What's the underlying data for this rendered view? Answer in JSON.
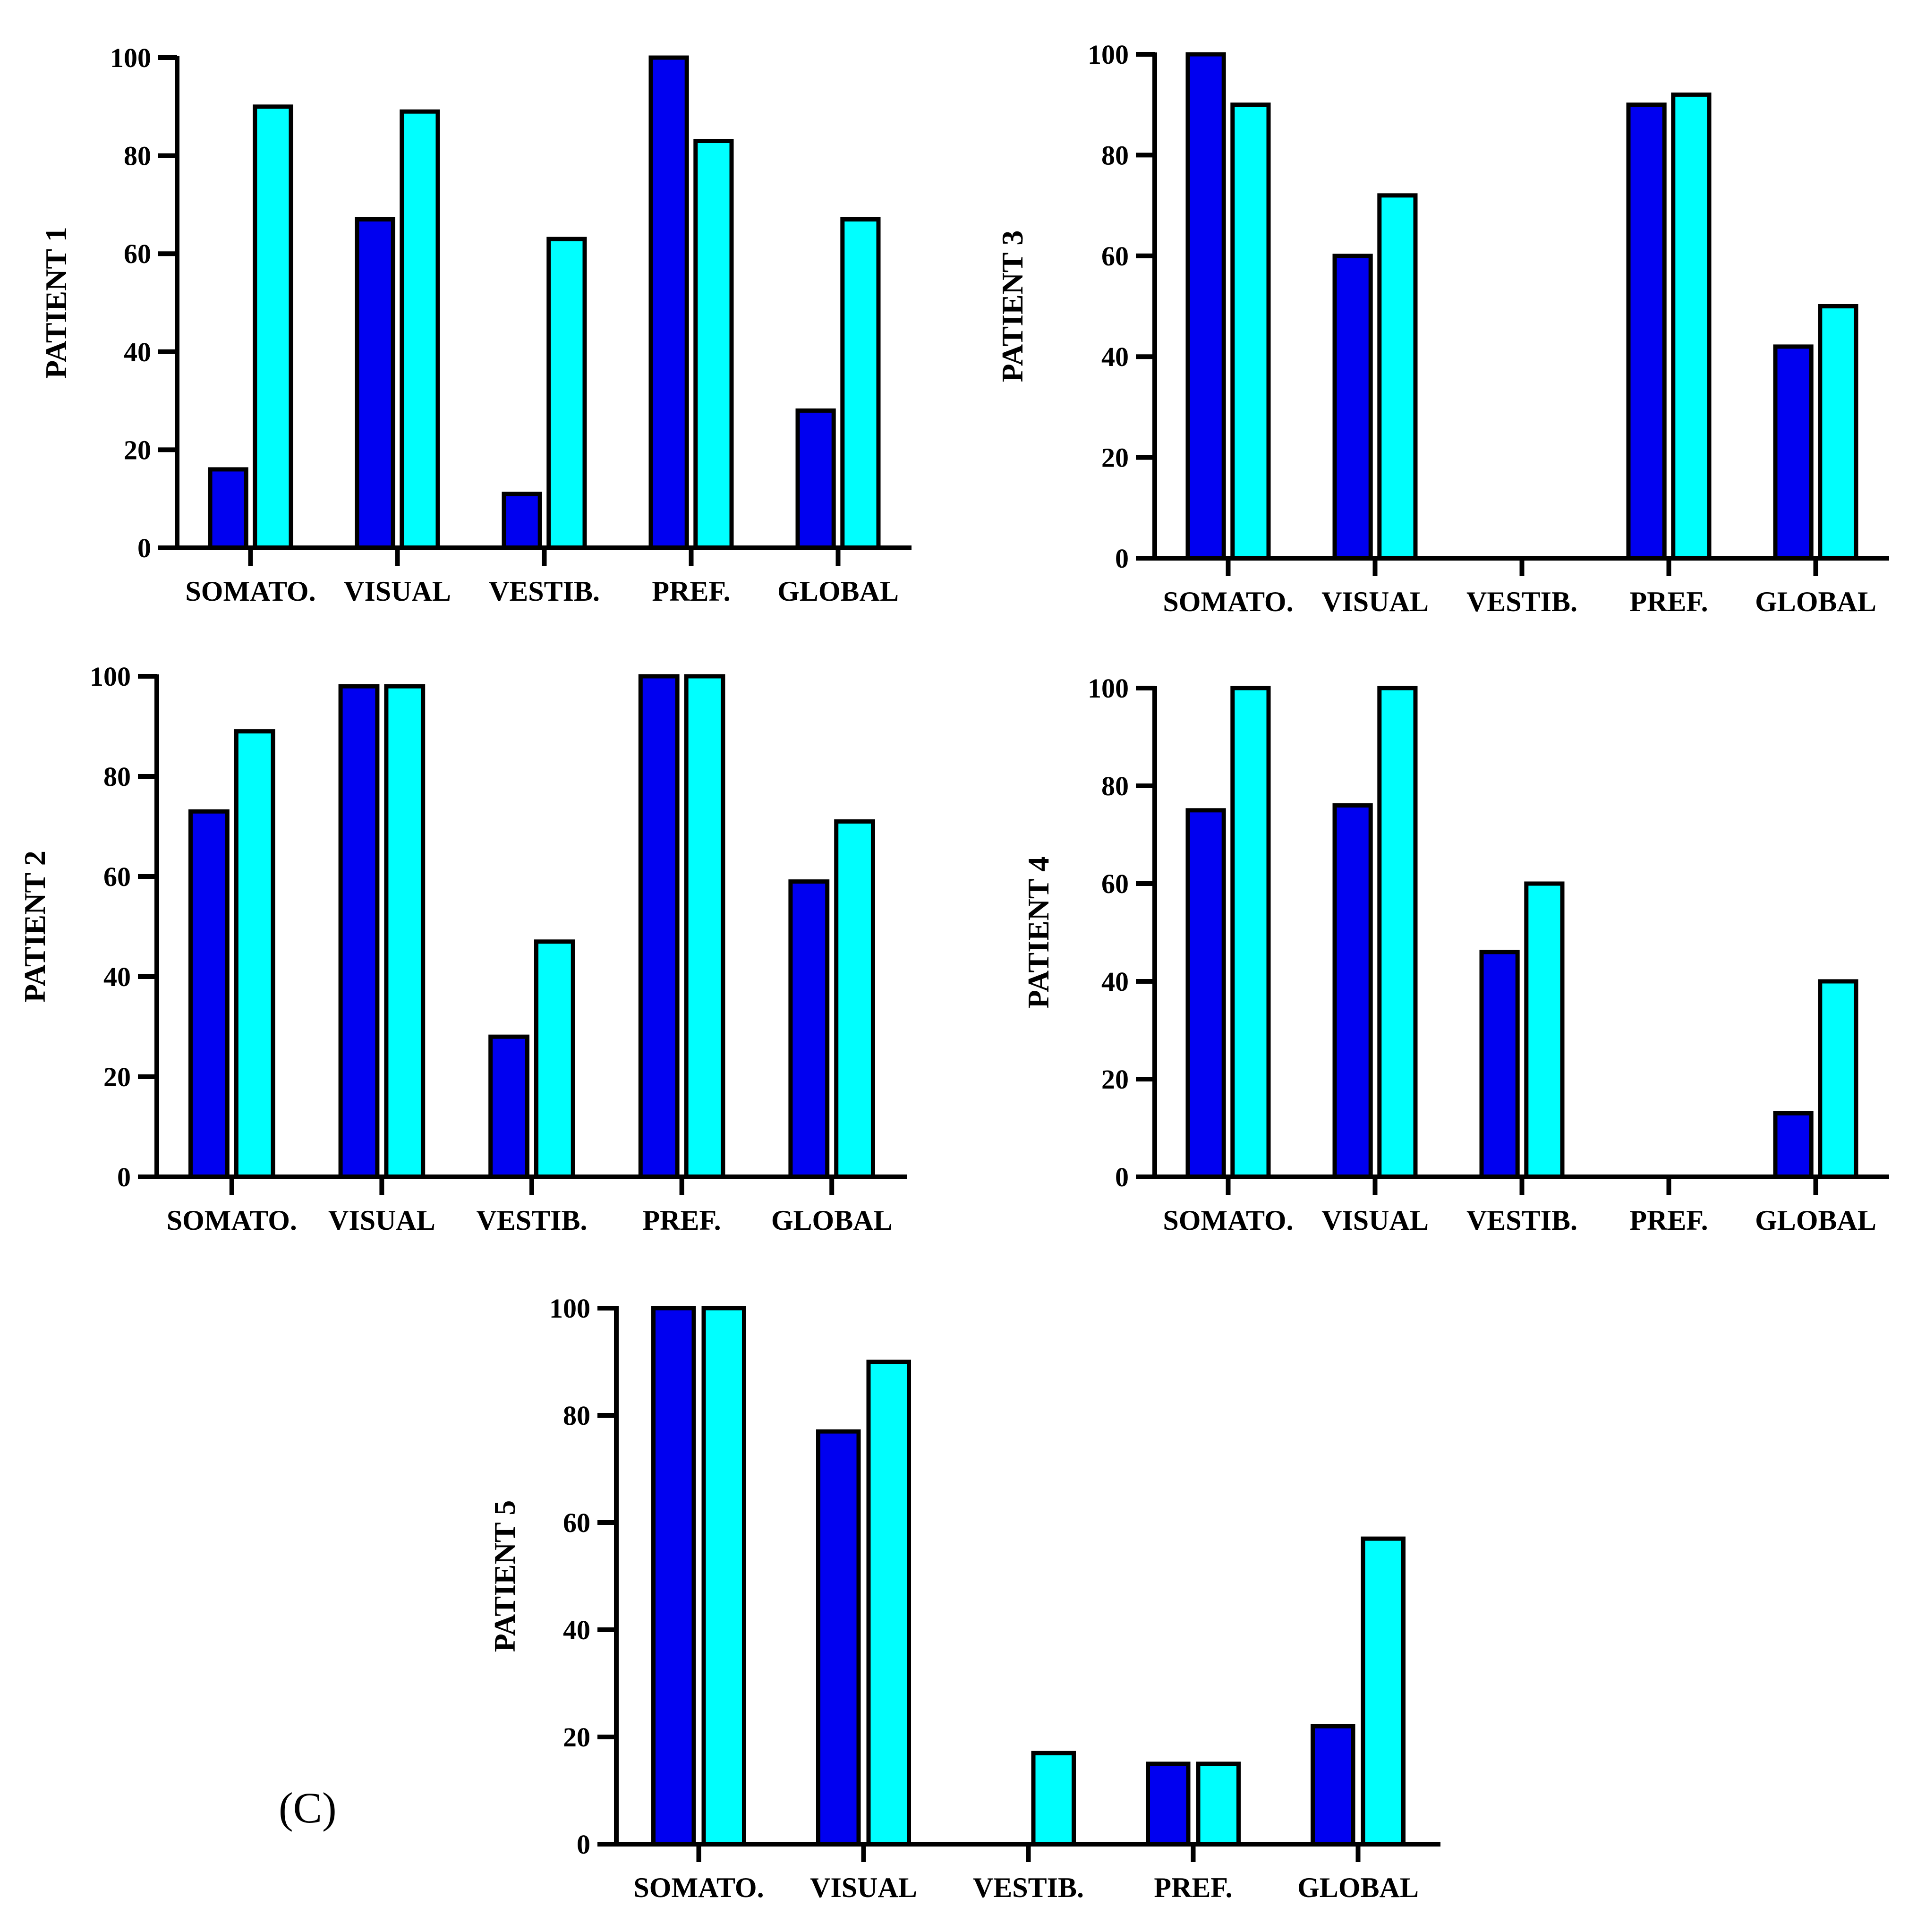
{
  "panel_tag": "(C)",
  "colors": {
    "series_1": "#0000F0",
    "series_2": "#00FFFF",
    "outline": "#000000"
  },
  "chart_data": [
    {
      "type": "bar",
      "ylabel": "PATIENT 1",
      "xlabel": "",
      "categories": [
        "SOMATO.",
        "VISUAL",
        "VESTIB.",
        "PREF.",
        "GLOBAL"
      ],
      "series": [
        {
          "values": [
            16,
            67,
            11,
            100,
            28
          ]
        },
        {
          "values": [
            90,
            89,
            63,
            83,
            67
          ]
        }
      ],
      "ylim": [
        0,
        100
      ],
      "yticks": [
        0,
        20,
        40,
        60,
        80,
        100
      ],
      "grid": false
    },
    {
      "type": "bar",
      "ylabel": "PATIENT 3",
      "xlabel": "",
      "categories": [
        "SOMATO.",
        "VISUAL",
        "VESTIB.",
        "PREF.",
        "GLOBAL"
      ],
      "series": [
        {
          "values": [
            100,
            60,
            0,
            90,
            42
          ]
        },
        {
          "values": [
            90,
            72,
            0,
            92,
            50
          ]
        }
      ],
      "ylim": [
        0,
        100
      ],
      "yticks": [
        0,
        20,
        40,
        60,
        80,
        100
      ],
      "grid": false
    },
    {
      "type": "bar",
      "ylabel": "PATIENT 2",
      "xlabel": "",
      "categories": [
        "SOMATO.",
        "VISUAL",
        "VESTIB.",
        "PREF.",
        "GLOBAL"
      ],
      "series": [
        {
          "values": [
            73,
            98,
            28,
            100,
            59
          ]
        },
        {
          "values": [
            89,
            98,
            47,
            100,
            71
          ]
        }
      ],
      "ylim": [
        0,
        100
      ],
      "yticks": [
        0,
        20,
        40,
        60,
        80,
        100
      ],
      "grid": false
    },
    {
      "type": "bar",
      "ylabel": "PATIENT 4",
      "xlabel": "",
      "categories": [
        "SOMATO.",
        "VISUAL",
        "VESTIB.",
        "PREF.",
        "GLOBAL"
      ],
      "series": [
        {
          "values": [
            75,
            76,
            46,
            0,
            13
          ]
        },
        {
          "values": [
            100,
            100,
            60,
            0,
            40
          ]
        }
      ],
      "ylim": [
        0,
        100
      ],
      "yticks": [
        0,
        20,
        40,
        60,
        80,
        100
      ],
      "grid": false
    },
    {
      "type": "bar",
      "ylabel": "PATIENT 5",
      "xlabel": "",
      "categories": [
        "SOMATO.",
        "VISUAL",
        "VESTIB.",
        "PREF.",
        "GLOBAL"
      ],
      "series": [
        {
          "values": [
            100,
            77,
            0,
            15,
            22
          ]
        },
        {
          "values": [
            100,
            90,
            17,
            15,
            57
          ]
        }
      ],
      "ylim": [
        0,
        100
      ],
      "yticks": [
        0,
        20,
        40,
        60,
        80,
        100
      ],
      "grid": false
    }
  ]
}
